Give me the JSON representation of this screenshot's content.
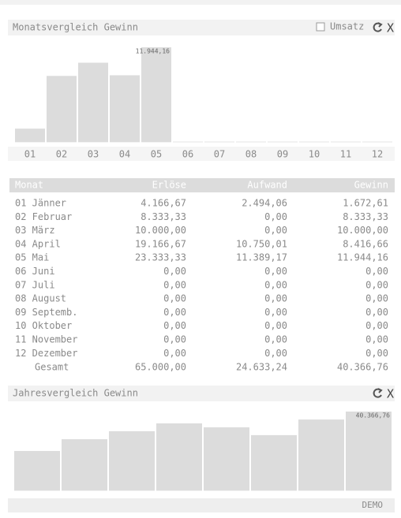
{
  "monthly_panel": {
    "title": "Monatsvergleich Gewinn",
    "checkbox_label": "Umsatz",
    "close": "X"
  },
  "yearly_panel": {
    "title": "Jahresvergleich Gewinn",
    "close": "X"
  },
  "footer": {
    "text": "DEMO"
  },
  "chart_data": [
    {
      "type": "bar",
      "color": "#dcdcdc",
      "categories": [
        "01",
        "02",
        "03",
        "04",
        "05",
        "06",
        "07",
        "08",
        "09",
        "10",
        "11",
        "12"
      ],
      "values": [
        1672.61,
        8333.33,
        10000,
        8416.66,
        11944.16,
        0,
        0,
        0,
        0,
        0,
        0,
        0
      ],
      "value_labels": [
        null,
        null,
        null,
        null,
        "11.944,16",
        null,
        null,
        null,
        null,
        null,
        null,
        null
      ]
    },
    {
      "type": "bar",
      "color": "#dcdcdc",
      "categories": [
        null,
        null,
        null,
        null,
        null,
        null,
        null,
        null
      ],
      "values": [
        20200,
        26200,
        30300,
        34300,
        32300,
        28300,
        36300,
        40366.76
      ],
      "value_labels": [
        null,
        null,
        null,
        null,
        null,
        null,
        null,
        "40.366,76"
      ]
    }
  ],
  "table": {
    "header": [
      "Monat",
      "Erlöse",
      "Aufwand",
      "Gewinn"
    ],
    "rows": [
      [
        "01 Jänner",
        "4.166,67",
        "2.494,06",
        "1.672,61"
      ],
      [
        "02 Februar",
        "8.333,33",
        "0,00",
        "8.333,33"
      ],
      [
        "03 März",
        "10.000,00",
        "0,00",
        "10.000,00"
      ],
      [
        "04 April",
        "19.166,67",
        "10.750,01",
        "8.416,66"
      ],
      [
        "05 Mai",
        "23.333,33",
        "11.389,17",
        "11.944,16"
      ],
      [
        "06 Juni",
        "0,00",
        "0,00",
        "0,00"
      ],
      [
        "07 Juli",
        "0,00",
        "0,00",
        "0,00"
      ],
      [
        "08 August",
        "0,00",
        "0,00",
        "0,00"
      ],
      [
        "09 Septemb.",
        "0,00",
        "0,00",
        "0,00"
      ],
      [
        "10 Oktober",
        "0,00",
        "0,00",
        "0,00"
      ],
      [
        "11 November",
        "0,00",
        "0,00",
        "0,00"
      ],
      [
        "12 Dezember",
        "0,00",
        "0,00",
        "0,00"
      ]
    ],
    "total": [
      "Gesamt",
      "65.000,00",
      "24.633,24",
      "40.366,76"
    ]
  }
}
